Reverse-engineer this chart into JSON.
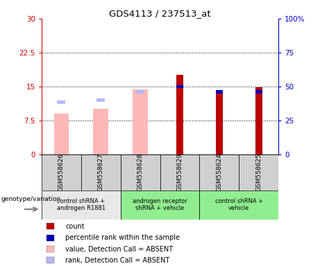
{
  "title": "GDS4113 / 237513_at",
  "samples": [
    "GSM558626",
    "GSM558627",
    "GSM558628",
    "GSM558629",
    "GSM558624",
    "GSM558625"
  ],
  "groups": [
    {
      "label": "control shRNA +\nandrogen R1881",
      "samples_idx": [
        0,
        1
      ],
      "color": "#e8e8e8"
    },
    {
      "label": "androgen receptor\nshRNA + vehicle",
      "samples_idx": [
        2,
        3
      ],
      "color": "#90ee90"
    },
    {
      "label": "control shRNA +\nvehicle",
      "samples_idx": [
        4,
        5
      ],
      "color": "#90ee90"
    }
  ],
  "count_values": [
    null,
    null,
    null,
    17.5,
    14.0,
    14.8
  ],
  "percentile_values": [
    null,
    null,
    null,
    15.0,
    13.8,
    13.8
  ],
  "value_absent": [
    9.0,
    10.0,
    14.3,
    null,
    null,
    null
  ],
  "rank_absent": [
    11.5,
    12.0,
    13.8,
    null,
    null,
    null
  ],
  "ylim_left": [
    0,
    30
  ],
  "ylim_right": [
    0,
    100
  ],
  "yticks_left": [
    0,
    7.5,
    15,
    22.5,
    30
  ],
  "yticks_right": [
    0,
    25,
    50,
    75,
    100
  ],
  "ytick_labels_left": [
    "0",
    "7.5",
    "15",
    "22.5",
    "30"
  ],
  "ytick_labels_right": [
    "0",
    "25",
    "50",
    "75",
    "100%"
  ],
  "grid_values": [
    7.5,
    15,
    22.5
  ],
  "count_color": "#bb0000",
  "percentile_color": "#0000bb",
  "value_absent_color": "#ffb8b8",
  "rank_absent_color": "#b8b8ff",
  "left_axis_color": "#cc0000",
  "right_axis_color": "#0000cc",
  "sample_box_color": "#d0d0d0",
  "legend_items": [
    {
      "label": "count",
      "color": "#bb0000"
    },
    {
      "label": "percentile rank within the sample",
      "color": "#0000bb"
    },
    {
      "label": "value, Detection Call = ABSENT",
      "color": "#ffb8b8"
    },
    {
      "label": "rank, Detection Call = ABSENT",
      "color": "#b8b8ff"
    }
  ]
}
